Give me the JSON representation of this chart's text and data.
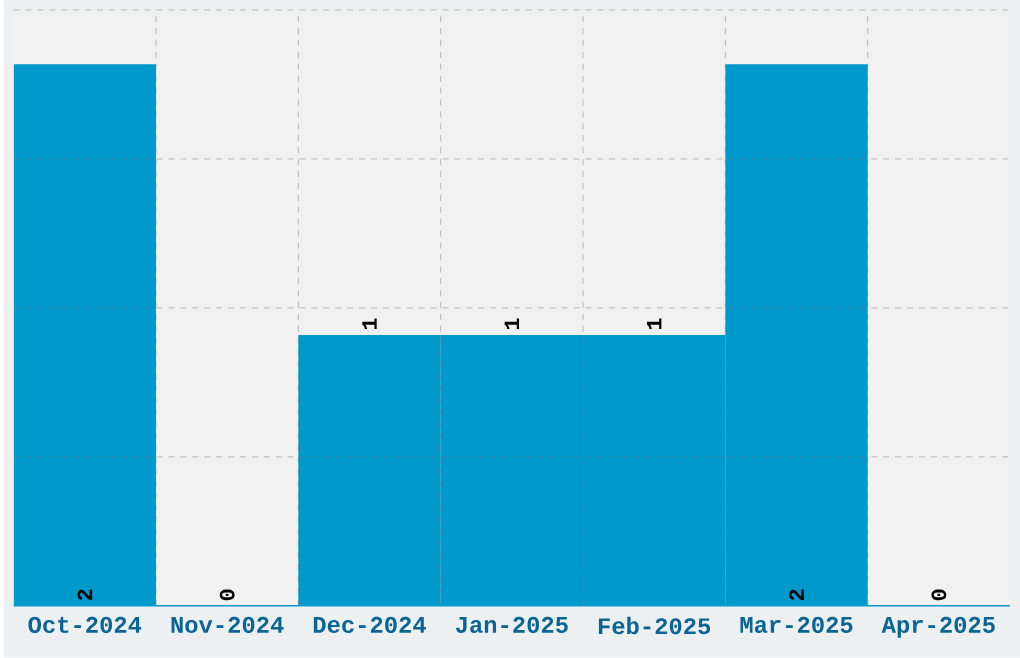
{
  "chart_data": {
    "type": "bar",
    "categories": [
      "Oct-2024",
      "Nov-2024",
      "Dec-2024",
      "Jan-2025",
      "Feb-2025",
      "Mar-2025",
      "Apr-2025"
    ],
    "values": [
      2,
      0,
      1,
      1,
      1,
      2,
      0
    ],
    "color": "#0099cc",
    "ylim": [
      0,
      2.2
    ],
    "grid": true,
    "data_labels": true,
    "tick_labels": "x"
  }
}
